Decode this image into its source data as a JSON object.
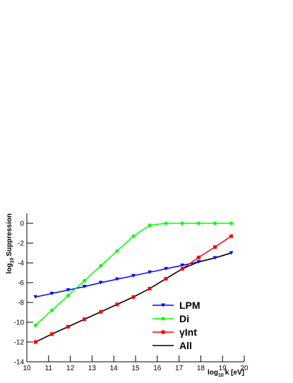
{
  "chart_data": {
    "type": "line",
    "x_label": [
      "log",
      "10",
      "k [eV]"
    ],
    "y_label": [
      "log",
      "10",
      "Suppression"
    ],
    "x": [
      10.4,
      11.15,
      11.9,
      12.65,
      13.4,
      14.15,
      14.9,
      15.65,
      16.4,
      17.15,
      17.9,
      18.65,
      19.4
    ],
    "series": [
      {
        "name": "LPM",
        "color": "#0000ff",
        "marker": "triangle-down",
        "values": [
          -7.45,
          -7.1,
          -6.75,
          -6.4,
          -6.0,
          -5.65,
          -5.3,
          -4.95,
          -4.6,
          -4.25,
          -3.9,
          -3.5,
          -3.0
        ]
      },
      {
        "name": "Di",
        "color": "#00ff00",
        "marker": "circle",
        "values": [
          -10.3,
          -8.8,
          -7.3,
          -5.8,
          -4.3,
          -2.8,
          -1.3,
          -0.2,
          0,
          0,
          0,
          0,
          0
        ]
      },
      {
        "name": "γInt",
        "color": "#ff0000",
        "marker": "square",
        "values": [
          -12.0,
          -11.2,
          -10.45,
          -9.7,
          -8.95,
          -8.2,
          -7.45,
          -6.6,
          -5.6,
          -4.6,
          -3.45,
          -2.4,
          -1.3
        ]
      },
      {
        "name": "All",
        "color": "#000000",
        "marker": "none",
        "values": [
          -12.0,
          -11.2,
          -10.45,
          -9.7,
          -8.95,
          -8.2,
          -7.45,
          -6.6,
          -5.6,
          -4.6,
          -3.9,
          -3.5,
          -3.0
        ]
      }
    ],
    "xlim": [
      10,
      20
    ],
    "xticks": [
      10,
      11,
      12,
      13,
      14,
      15,
      16,
      17,
      18,
      19,
      20
    ],
    "ylim": [
      -14,
      1
    ],
    "yticks": [
      -14,
      -12,
      -10,
      -8,
      -6,
      -4,
      -2,
      0
    ],
    "grid": false
  }
}
